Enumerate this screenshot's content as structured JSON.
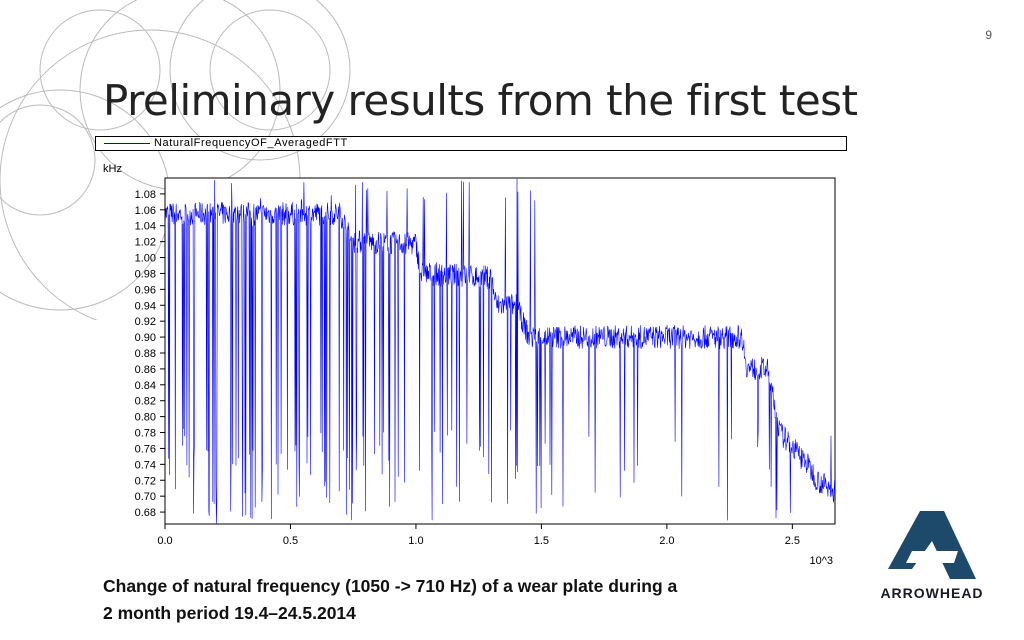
{
  "slide": {
    "number": "9",
    "title": "Preliminary results from the first test",
    "caption_line1": "Change of natural frequency (1050 -> 710 Hz) of a wear plate during a",
    "caption_line2": "2 month period 19.4–24.5.2014"
  },
  "logo": {
    "text": "ARROWHEAD",
    "icon": "arrowhead-logo-icon",
    "color": "#1d4a6b"
  },
  "chart_data": {
    "type": "line",
    "title": "",
    "legend": {
      "entries": [
        "NaturalFrequencyOF_AveragedFTT"
      ],
      "placement": "top"
    },
    "ylabel": "kHz",
    "xlabel": "10^3",
    "xlim": [
      0.0,
      2.67
    ],
    "ylim": [
      0.665,
      1.1
    ],
    "yticks": [
      "1.08",
      "1.06",
      "1.04",
      "1.02",
      "1.00",
      "0.98",
      "0.96",
      "0.94",
      "0.92",
      "0.90",
      "0.88",
      "0.86",
      "0.84",
      "0.82",
      "0.80",
      "0.78",
      "0.76",
      "0.74",
      "0.72",
      "0.70",
      "0.68"
    ],
    "xticks": [
      "0.0",
      "0.5",
      "1.0",
      "1.5",
      "2.0",
      "2.5"
    ],
    "series_color": "#0000ff",
    "series": [
      {
        "name": "NaturalFrequencyOF_AveragedFTT",
        "baseline": [
          [
            0.0,
            1.055
          ],
          [
            0.7,
            1.055
          ],
          [
            0.72,
            1.04
          ],
          [
            0.74,
            1.02
          ],
          [
            1.0,
            1.017
          ],
          [
            1.02,
            0.98
          ],
          [
            1.3,
            0.975
          ],
          [
            1.32,
            0.94
          ],
          [
            1.4,
            0.94
          ],
          [
            1.45,
            0.9
          ],
          [
            1.9,
            0.9
          ],
          [
            2.0,
            0.9
          ],
          [
            2.3,
            0.9
          ],
          [
            2.32,
            0.86
          ],
          [
            2.4,
            0.86
          ],
          [
            2.45,
            0.78
          ],
          [
            2.55,
            0.745
          ],
          [
            2.6,
            0.72
          ],
          [
            2.67,
            0.705
          ]
        ],
        "dropout_min": 0.665,
        "spike_max": 1.1
      }
    ]
  }
}
